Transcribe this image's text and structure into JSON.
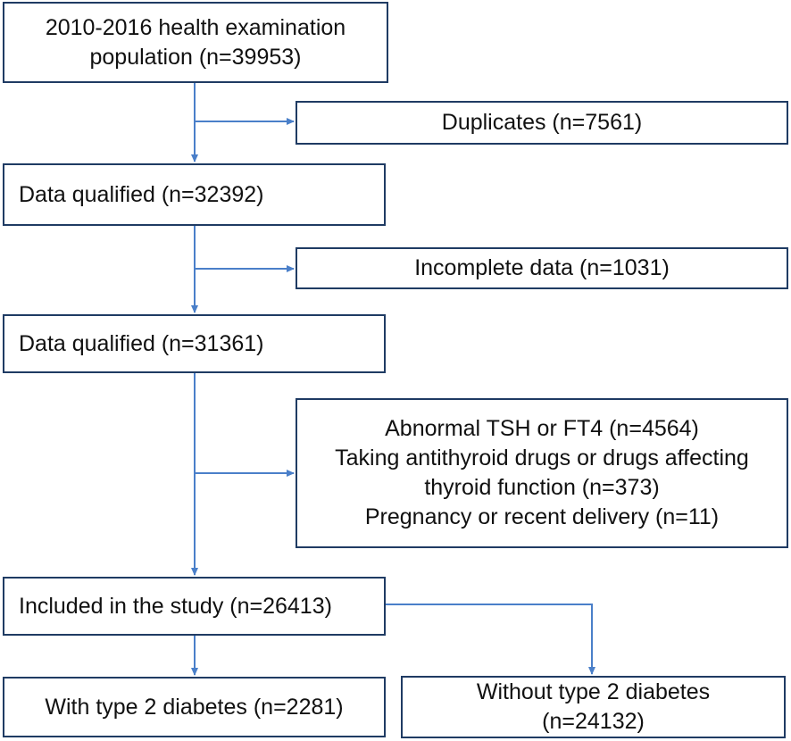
{
  "colors": {
    "arrow": "#4a7fc9",
    "border": "#1f3b63"
  },
  "boxes": {
    "population": {
      "line1": "2010-2016 health examination",
      "line2": "population (n=39953)"
    },
    "duplicates": {
      "text": "Duplicates (n=7561)"
    },
    "qualified1": {
      "text": "Data qualified (n=32392)"
    },
    "incomplete": {
      "text": "Incomplete data (n=1031)"
    },
    "qualified2": {
      "text": "Data qualified (n=31361)"
    },
    "exclusions": {
      "line1": "Abnormal TSH or FT4 (n=4564)",
      "line2": "Taking antithyroid drugs or drugs affecting",
      "line3": "thyroid function (n=373)",
      "line4": "Pregnancy or recent delivery (n=11)"
    },
    "included": {
      "text": "Included in the study (n=26413)"
    },
    "with_t2d": {
      "text": "With type 2 diabetes (n=2281)"
    },
    "without_t2d": {
      "line1": "Without type 2 diabetes",
      "line2": "(n=24132)"
    }
  }
}
